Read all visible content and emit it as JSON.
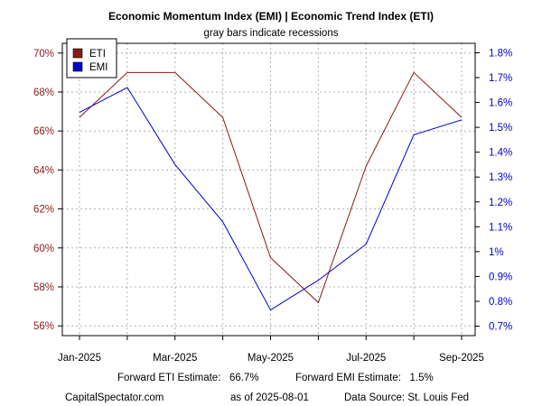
{
  "chart_data": {
    "type": "line",
    "title": "Economic Momentum Index (EMI) | Economic Trend Index (ETI)",
    "subtitle": "gray bars indicate recessions",
    "x": [
      "2025-01",
      "2025-02",
      "2025-03",
      "2025-04",
      "2025-05",
      "2025-06",
      "2025-07",
      "2025-08",
      "2025-09"
    ],
    "x_tick_labels": [
      "Jan-2025",
      "Mar-2025",
      "May-2025",
      "Jul-2025",
      "Sep-2025"
    ],
    "series": [
      {
        "name": "ETI",
        "axis": "left",
        "color": "#8B1A1A",
        "values": [
          66.7,
          69.0,
          69.0,
          66.7,
          59.5,
          57.2,
          64.2,
          69.0,
          66.7
        ]
      },
      {
        "name": "EMI",
        "axis": "right",
        "color": "#0000CC",
        "values": [
          1.56,
          1.66,
          1.35,
          1.12,
          0.765,
          0.885,
          1.03,
          1.47,
          1.53
        ]
      }
    ],
    "y_left": {
      "ylim": [
        55.5,
        70.5
      ],
      "ticks": [
        56,
        58,
        60,
        62,
        64,
        66,
        68,
        70
      ],
      "tick_labels": [
        "56%",
        "58%",
        "60%",
        "62%",
        "64%",
        "66%",
        "68%",
        "70%"
      ],
      "color": "#8B1A1A"
    },
    "y_right": {
      "ylim": [
        0.662,
        1.838
      ],
      "ticks": [
        0.7,
        0.8,
        0.9,
        1.0,
        1.1,
        1.2,
        1.3,
        1.4,
        1.5,
        1.6,
        1.7,
        1.8
      ],
      "tick_labels": [
        "0.7%",
        "0.8%",
        "0.9%",
        "1%",
        "1.1%",
        "1.2%",
        "1.3%",
        "1.4%",
        "1.5%",
        "1.6%",
        "1.7%",
        "1.8%"
      ],
      "color": "#0000CC"
    },
    "grid": true,
    "legend": {
      "placement": "top-left",
      "entries": [
        {
          "label": "ETI",
          "color": "#8B1A1A"
        },
        {
          "label": "EMI",
          "color": "#0000CC"
        }
      ]
    }
  },
  "footer": {
    "forward_eti": "Forward ETI Estimate:   66.7%",
    "forward_emi": "Forward EMI Estimate:   1.5%",
    "source_site": "CapitalSpectator.com",
    "as_of": "as of 2025-08-01",
    "data_source": "Data Source: St. Louis Fed"
  }
}
